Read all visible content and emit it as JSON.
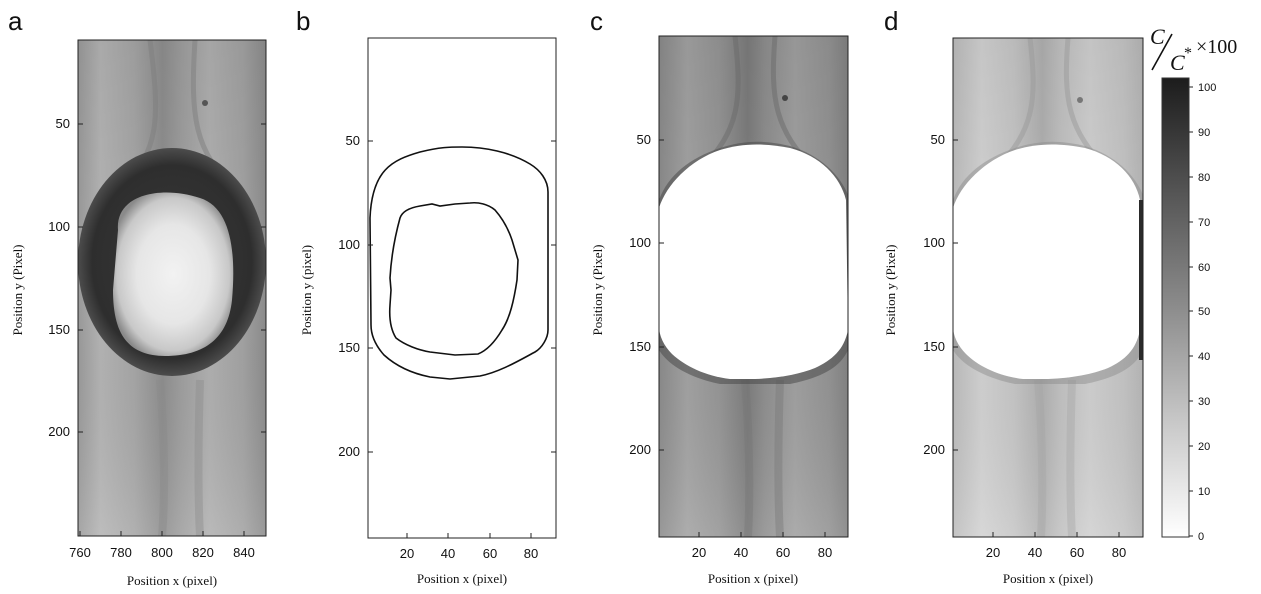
{
  "figure": {
    "panels": [
      {
        "letter": "a",
        "xlabel": "Position x (pixel)",
        "ylabel": "Position y (Pixel)",
        "xticks": [
          "760",
          "780",
          "800",
          "820",
          "840"
        ],
        "yticks": [
          "50",
          "100",
          "150",
          "200"
        ],
        "content": "concentration map with dark ring around bright droplet"
      },
      {
        "letter": "b",
        "xlabel": "Position x (pixel)",
        "ylabel": "Position y (pixel)",
        "xticks": [
          "20",
          "40",
          "60",
          "80"
        ],
        "yticks": [
          "50",
          "100",
          "150",
          "200"
        ],
        "content": "two closed contour outlines"
      },
      {
        "letter": "c",
        "xlabel": "Position x (pixel)",
        "ylabel": "Position y (Pixel)",
        "xticks": [
          "20",
          "40",
          "60",
          "80"
        ],
        "yticks": [
          "50",
          "100",
          "150",
          "200"
        ],
        "content": "concentration map with masked white droplet region"
      },
      {
        "letter": "d",
        "xlabel": "Position x (pixel)",
        "ylabel": "Position y (Pixel)",
        "xticks": [
          "20",
          "40",
          "60",
          "80"
        ],
        "yticks": [
          "50",
          "100",
          "150",
          "200"
        ],
        "content": "concentration map with masked white droplet region, lighter"
      }
    ],
    "colorbar": {
      "label_numerator": "C",
      "label_denominator": "C",
      "label_superscript": "*",
      "label_multiplier": "×100",
      "ticks": [
        "100",
        "90",
        "80",
        "70",
        "60",
        "50",
        "40",
        "30",
        "20",
        "10",
        "0"
      ],
      "colors": {
        "low": "#ffffff",
        "high": "#1c1c1c"
      }
    }
  }
}
